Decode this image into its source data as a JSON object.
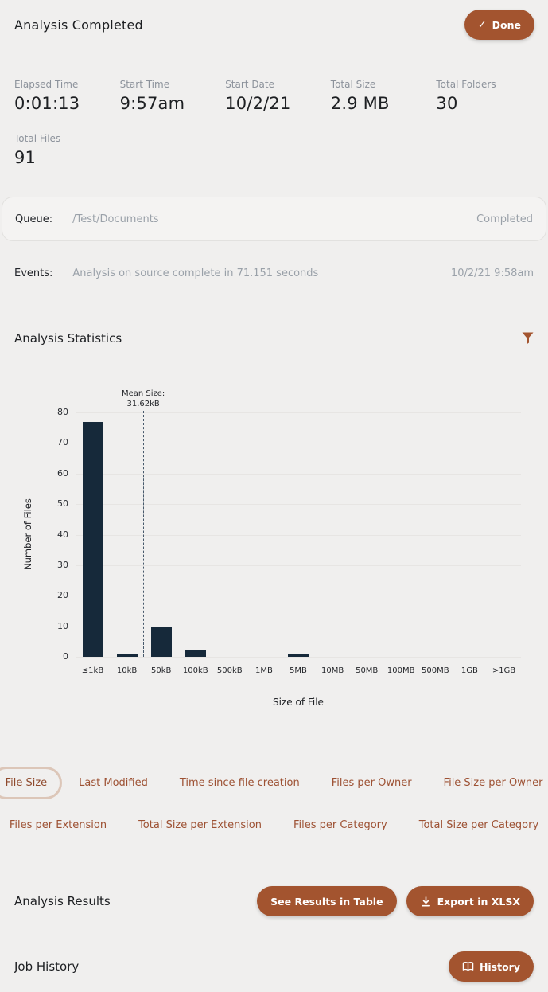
{
  "header": {
    "title": "Analysis Completed",
    "done_label": "Done"
  },
  "stats": [
    {
      "label": "Elapsed Time",
      "value": "0:01:13"
    },
    {
      "label": "Start Time",
      "value": "9:57am"
    },
    {
      "label": "Start Date",
      "value": "10/2/21"
    },
    {
      "label": "Total Size",
      "value": "2.9 MB"
    },
    {
      "label": "Total Folders",
      "value": "30"
    },
    {
      "label": "Total Files",
      "value": "91"
    }
  ],
  "queue": {
    "label": "Queue:",
    "path": "/Test/Documents",
    "status": "Completed"
  },
  "events": {
    "label": "Events:",
    "message": "Analysis on source complete in 71.151 seconds",
    "timestamp": "10/2/21 9:58am"
  },
  "statistics_section": {
    "title": "Analysis Statistics"
  },
  "chart_data": {
    "type": "bar",
    "title": "",
    "categories": [
      "≤1kB",
      "10kB",
      "50kB",
      "100kB",
      "500kB",
      "1MB",
      "5MB",
      "10MB",
      "50MB",
      "100MB",
      "500MB",
      "1GB",
      ">1GB"
    ],
    "values": [
      77,
      1,
      10,
      2,
      0,
      0,
      1,
      0,
      0,
      0,
      0,
      0,
      0
    ],
    "xlabel": "Size of File",
    "ylabel": "Number of Files",
    "ylim": [
      0,
      80
    ],
    "ytick_step": 10,
    "grid": true,
    "legend": false,
    "bar_color": "#16293a",
    "annotation": {
      "label": "Mean Size:",
      "value": "31.62kB",
      "x_fraction": 0.152
    }
  },
  "chart_tabs": {
    "rows": [
      [
        {
          "label": "File Size",
          "selected": true
        },
        {
          "label": "Last Modified",
          "selected": false
        },
        {
          "label": "Time since file creation",
          "selected": false
        },
        {
          "label": "Files per Owner",
          "selected": false
        },
        {
          "label": "File Size per Owner",
          "selected": false
        }
      ],
      [
        {
          "label": "Files per Extension",
          "selected": false
        },
        {
          "label": "Total Size per Extension",
          "selected": false
        },
        {
          "label": "Files per Category",
          "selected": false
        },
        {
          "label": "Total Size per Category",
          "selected": false
        }
      ]
    ]
  },
  "results_section": {
    "title": "Analysis Results",
    "see_results_label": "See Results in Table",
    "export_label": "Export in XLSX"
  },
  "job_history_section": {
    "title": "Job History",
    "history_label": "History"
  },
  "colors": {
    "accent": "#a3542f",
    "bar": "#16293a",
    "chip_text": "#9d5133",
    "chip_selected_border": "#dcc6b8",
    "background": "#f0efee"
  }
}
